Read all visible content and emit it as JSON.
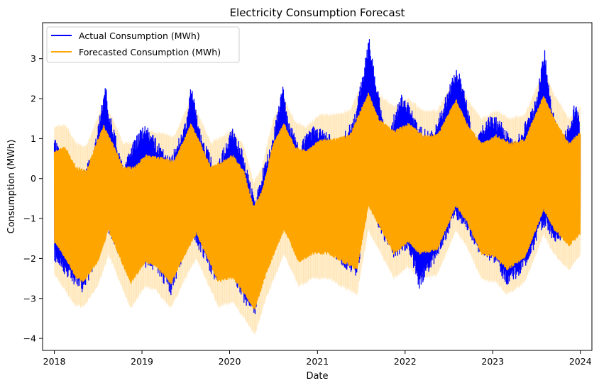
{
  "chart_data": {
    "type": "line",
    "title": "Electricity Consumption Forecast",
    "xlabel": "Date",
    "ylabel": "Consumption (MWh)",
    "xlim": [
      "2017-11-13",
      "2024-02-18"
    ],
    "ylim": [
      -4.3,
      3.9
    ],
    "x_ticks": [
      "2018",
      "2019",
      "2020",
      "2021",
      "2022",
      "2023",
      "2024"
    ],
    "y_ticks": [
      -4,
      -3,
      -2,
      -1,
      0,
      1,
      2,
      3
    ],
    "legend": {
      "placement": "upper-left"
    },
    "grid": false,
    "x_range": [
      "2018-01-01",
      "2024-01-01"
    ],
    "series": [
      {
        "name": "Actual Consumption (MWh)",
        "color": "#0000ff",
        "upper_envelope": [
          [
            "2018-01-01",
            1.0
          ],
          [
            "2018-03-01",
            0.45
          ],
          [
            "2018-05-01",
            0.2
          ],
          [
            "2018-06-15",
            0.7
          ],
          [
            "2018-08-01",
            2.45
          ],
          [
            "2018-08-15",
            1.8
          ],
          [
            "2018-10-15",
            0.3
          ],
          [
            "2018-12-01",
            1.0
          ],
          [
            "2019-01-15",
            1.4
          ],
          [
            "2019-03-01",
            1.0
          ],
          [
            "2019-05-01",
            0.55
          ],
          [
            "2019-07-01",
            1.4
          ],
          [
            "2019-07-25",
            2.4
          ],
          [
            "2019-09-01",
            1.2
          ],
          [
            "2019-11-01",
            0.3
          ],
          [
            "2019-12-15",
            0.9
          ],
          [
            "2020-01-15",
            1.35
          ],
          [
            "2020-03-01",
            0.6
          ],
          [
            "2020-04-15",
            -0.5
          ],
          [
            "2020-05-15",
            0.2
          ],
          [
            "2020-07-01",
            1.1
          ],
          [
            "2020-08-10",
            2.45
          ],
          [
            "2020-09-01",
            1.5
          ],
          [
            "2020-10-15",
            0.9
          ],
          [
            "2020-12-15",
            1.3
          ],
          [
            "2021-02-01",
            1.2
          ],
          [
            "2021-04-01",
            0.95
          ],
          [
            "2021-06-01",
            1.5
          ],
          [
            "2021-08-05",
            3.55
          ],
          [
            "2021-09-01",
            2.5
          ],
          [
            "2021-10-15",
            1.1
          ],
          [
            "2021-12-15",
            2.1
          ],
          [
            "2022-01-15",
            1.95
          ],
          [
            "2022-03-01",
            1.3
          ],
          [
            "2022-05-01",
            1.2
          ],
          [
            "2022-08-01",
            2.8
          ],
          [
            "2022-09-01",
            2.4
          ],
          [
            "2022-10-15",
            0.95
          ],
          [
            "2022-12-15",
            1.6
          ],
          [
            "2023-02-01",
            1.5
          ],
          [
            "2023-04-01",
            0.9
          ],
          [
            "2023-07-01",
            2.0
          ],
          [
            "2023-08-05",
            3.3
          ],
          [
            "2023-09-01",
            1.95
          ],
          [
            "2023-10-15",
            0.95
          ],
          [
            "2023-12-15",
            2.0
          ],
          [
            "2024-01-01",
            1.3
          ]
        ],
        "lower_envelope": [
          [
            "2018-01-01",
            -2.1
          ],
          [
            "2018-03-01",
            -2.5
          ],
          [
            "2018-05-01",
            -2.9
          ],
          [
            "2018-07-01",
            -2.0
          ],
          [
            "2018-08-01",
            -1.2
          ],
          [
            "2018-09-15",
            -1.8
          ],
          [
            "2018-11-01",
            -2.4
          ],
          [
            "2019-01-01",
            -2.2
          ],
          [
            "2019-03-01",
            -2.3
          ],
          [
            "2019-05-01",
            -2.95
          ],
          [
            "2019-07-01",
            -1.8
          ],
          [
            "2019-08-01",
            -1.5
          ],
          [
            "2019-09-15",
            -2.0
          ],
          [
            "2019-11-01",
            -2.6
          ],
          [
            "2020-01-01",
            -2.3
          ],
          [
            "2020-03-01",
            -3.1
          ],
          [
            "2020-04-15",
            -3.45
          ],
          [
            "2020-05-15",
            -2.6
          ],
          [
            "2020-07-01",
            -1.9
          ],
          [
            "2020-08-15",
            -1.2
          ],
          [
            "2020-10-15",
            -2.0
          ],
          [
            "2020-12-15",
            -1.7
          ],
          [
            "2021-02-15",
            -1.8
          ],
          [
            "2021-04-15",
            -2.2
          ],
          [
            "2021-06-15",
            -2.5
          ],
          [
            "2021-08-01",
            -0.5
          ],
          [
            "2021-09-15",
            -1.3
          ],
          [
            "2021-11-15",
            -2.0
          ],
          [
            "2022-01-15",
            -1.8
          ],
          [
            "2022-03-01",
            -2.75
          ],
          [
            "2022-05-15",
            -2.0
          ],
          [
            "2022-08-01",
            -1.0
          ],
          [
            "2022-09-15",
            -1.3
          ],
          [
            "2022-11-15",
            -2.0
          ],
          [
            "2023-01-15",
            -2.2
          ],
          [
            "2023-03-01",
            -2.7
          ],
          [
            "2023-05-15",
            -2.3
          ],
          [
            "2023-08-01",
            -1.2
          ],
          [
            "2023-09-15",
            -1.6
          ],
          [
            "2023-11-01",
            -1.5
          ],
          [
            "2024-01-01",
            -1.4
          ]
        ]
      },
      {
        "name": "Forecasted Consumption (MWh)",
        "color": "#ffa500",
        "upper_envelope": [
          [
            "2018-01-01",
            0.7
          ],
          [
            "2018-02-15",
            0.8
          ],
          [
            "2018-04-01",
            0.3
          ],
          [
            "2018-05-15",
            0.2
          ],
          [
            "2018-06-15",
            0.75
          ],
          [
            "2018-07-25",
            1.35
          ],
          [
            "2018-09-01",
            0.9
          ],
          [
            "2018-10-15",
            0.3
          ],
          [
            "2018-12-01",
            0.3
          ],
          [
            "2019-01-15",
            0.6
          ],
          [
            "2019-03-15",
            0.55
          ],
          [
            "2019-05-15",
            0.45
          ],
          [
            "2019-07-25",
            1.4
          ],
          [
            "2019-09-01",
            0.9
          ],
          [
            "2019-10-15",
            0.3
          ],
          [
            "2019-12-01",
            0.45
          ],
          [
            "2020-01-15",
            0.6
          ],
          [
            "2020-03-01",
            0.2
          ],
          [
            "2020-04-10",
            -0.7
          ],
          [
            "2020-05-15",
            -0.3
          ],
          [
            "2020-07-01",
            0.9
          ],
          [
            "2020-08-15",
            1.4
          ],
          [
            "2020-10-01",
            0.8
          ],
          [
            "2020-11-15",
            0.7
          ],
          [
            "2021-01-15",
            1.0
          ],
          [
            "2021-03-15",
            1.0
          ],
          [
            "2021-05-15",
            1.1
          ],
          [
            "2021-08-01",
            2.15
          ],
          [
            "2021-09-15",
            1.5
          ],
          [
            "2021-11-15",
            1.2
          ],
          [
            "2022-01-15",
            1.4
          ],
          [
            "2022-03-15",
            1.1
          ],
          [
            "2022-05-15",
            1.1
          ],
          [
            "2022-08-01",
            2.0
          ],
          [
            "2022-09-15",
            1.4
          ],
          [
            "2022-11-15",
            0.9
          ],
          [
            "2023-01-15",
            1.1
          ],
          [
            "2023-03-15",
            0.9
          ],
          [
            "2023-05-15",
            1.0
          ],
          [
            "2023-08-01",
            2.1
          ],
          [
            "2023-09-15",
            1.5
          ],
          [
            "2023-11-15",
            0.9
          ],
          [
            "2024-01-01",
            1.2
          ]
        ],
        "lower_envelope": [
          [
            "2018-01-01",
            -1.6
          ],
          [
            "2018-02-15",
            -2.0
          ],
          [
            "2018-04-01",
            -2.5
          ],
          [
            "2018-05-01",
            -2.6
          ],
          [
            "2018-07-01",
            -2.1
          ],
          [
            "2018-08-15",
            -1.3
          ],
          [
            "2018-10-01",
            -2.0
          ],
          [
            "2018-11-15",
            -2.65
          ],
          [
            "2019-01-15",
            -2.1
          ],
          [
            "2019-03-01",
            -2.2
          ],
          [
            "2019-05-01",
            -2.65
          ],
          [
            "2019-07-01",
            -1.9
          ],
          [
            "2019-08-15",
            -1.4
          ],
          [
            "2019-10-01",
            -2.0
          ],
          [
            "2019-11-15",
            -2.6
          ],
          [
            "2020-01-15",
            -2.5
          ],
          [
            "2020-03-01",
            -2.9
          ],
          [
            "2020-04-15",
            -3.3
          ],
          [
            "2020-06-01",
            -2.4
          ],
          [
            "2020-08-15",
            -1.3
          ],
          [
            "2020-10-15",
            -2.1
          ],
          [
            "2020-12-15",
            -1.9
          ],
          [
            "2021-02-15",
            -1.9
          ],
          [
            "2021-04-15",
            -2.1
          ],
          [
            "2021-06-15",
            -2.3
          ],
          [
            "2021-08-01",
            -0.7
          ],
          [
            "2021-09-15",
            -1.2
          ],
          [
            "2021-11-15",
            -1.9
          ],
          [
            "2022-01-15",
            -1.6
          ],
          [
            "2022-03-01",
            -1.9
          ],
          [
            "2022-05-15",
            -1.8
          ],
          [
            "2022-08-01",
            -0.7
          ],
          [
            "2022-09-15",
            -1.1
          ],
          [
            "2022-11-15",
            -1.9
          ],
          [
            "2023-01-15",
            -2.0
          ],
          [
            "2023-03-01",
            -2.3
          ],
          [
            "2023-05-15",
            -2.0
          ],
          [
            "2023-08-01",
            -0.8
          ],
          [
            "2023-09-15",
            -1.3
          ],
          [
            "2023-11-15",
            -1.7
          ],
          [
            "2024-01-01",
            -1.4
          ]
        ]
      }
    ],
    "confidence_band": {
      "color": "#ffa500",
      "opacity": 0.2,
      "upper_envelope": [
        [
          "2018-01-01",
          1.3
        ],
        [
          "2018-02-15",
          1.35
        ],
        [
          "2018-04-01",
          0.9
        ],
        [
          "2018-05-15",
          0.8
        ],
        [
          "2018-06-15",
          1.3
        ],
        [
          "2018-07-25",
          1.9
        ],
        [
          "2018-09-01",
          1.5
        ],
        [
          "2018-10-15",
          0.9
        ],
        [
          "2018-12-01",
          0.9
        ],
        [
          "2019-01-15",
          1.2
        ],
        [
          "2019-03-15",
          1.15
        ],
        [
          "2019-05-15",
          1.05
        ],
        [
          "2019-07-25",
          2.0
        ],
        [
          "2019-09-01",
          1.5
        ],
        [
          "2019-10-15",
          0.9
        ],
        [
          "2019-12-01",
          1.05
        ],
        [
          "2020-01-15",
          1.2
        ],
        [
          "2020-03-01",
          0.8
        ],
        [
          "2020-04-10",
          -0.1
        ],
        [
          "2020-05-15",
          0.3
        ],
        [
          "2020-07-01",
          1.5
        ],
        [
          "2020-08-15",
          2.0
        ],
        [
          "2020-10-01",
          1.4
        ],
        [
          "2020-11-15",
          1.3
        ],
        [
          "2021-01-15",
          1.6
        ],
        [
          "2021-03-15",
          1.6
        ],
        [
          "2021-05-15",
          1.7
        ],
        [
          "2021-08-01",
          2.7
        ],
        [
          "2021-09-15",
          2.1
        ],
        [
          "2021-11-15",
          1.8
        ],
        [
          "2022-01-15",
          2.0
        ],
        [
          "2022-03-15",
          1.7
        ],
        [
          "2022-05-15",
          1.7
        ],
        [
          "2022-08-01",
          2.6
        ],
        [
          "2022-09-15",
          2.0
        ],
        [
          "2022-11-15",
          1.5
        ],
        [
          "2023-01-15",
          1.7
        ],
        [
          "2023-03-15",
          1.5
        ],
        [
          "2023-05-15",
          1.6
        ],
        [
          "2023-08-01",
          2.7
        ],
        [
          "2023-09-15",
          2.1
        ],
        [
          "2023-11-15",
          1.5
        ],
        [
          "2024-01-01",
          1.8
        ]
      ],
      "lower_envelope": [
        [
          "2018-01-01",
          -2.4
        ],
        [
          "2018-02-15",
          -2.8
        ],
        [
          "2018-04-01",
          -3.2
        ],
        [
          "2018-05-01",
          -3.2
        ],
        [
          "2018-07-01",
          -2.7
        ],
        [
          "2018-08-15",
          -1.9
        ],
        [
          "2018-10-01",
          -2.6
        ],
        [
          "2018-11-15",
          -3.25
        ],
        [
          "2019-01-15",
          -2.7
        ],
        [
          "2019-03-01",
          -2.8
        ],
        [
          "2019-05-01",
          -3.25
        ],
        [
          "2019-07-01",
          -2.5
        ],
        [
          "2019-08-15",
          -2.0
        ],
        [
          "2019-10-01",
          -2.6
        ],
        [
          "2019-11-15",
          -3.2
        ],
        [
          "2020-01-15",
          -3.1
        ],
        [
          "2020-03-01",
          -3.5
        ],
        [
          "2020-04-15",
          -3.9
        ],
        [
          "2020-06-01",
          -3.0
        ],
        [
          "2020-08-15",
          -1.9
        ],
        [
          "2020-10-15",
          -2.7
        ],
        [
          "2020-12-15",
          -2.5
        ],
        [
          "2021-02-15",
          -2.5
        ],
        [
          "2021-04-15",
          -2.7
        ],
        [
          "2021-06-15",
          -2.9
        ],
        [
          "2021-08-01",
          -1.3
        ],
        [
          "2021-09-15",
          -1.8
        ],
        [
          "2021-11-15",
          -2.5
        ],
        [
          "2022-01-15",
          -2.2
        ],
        [
          "2022-03-01",
          -2.5
        ],
        [
          "2022-05-15",
          -2.4
        ],
        [
          "2022-08-01",
          -1.3
        ],
        [
          "2022-09-15",
          -1.7
        ],
        [
          "2022-11-15",
          -2.5
        ],
        [
          "2023-01-15",
          -2.6
        ],
        [
          "2023-03-01",
          -2.9
        ],
        [
          "2023-05-15",
          -2.6
        ],
        [
          "2023-08-01",
          -1.4
        ],
        [
          "2023-09-15",
          -1.9
        ],
        [
          "2023-11-15",
          -2.3
        ],
        [
          "2024-01-01",
          -1.9
        ]
      ]
    }
  }
}
